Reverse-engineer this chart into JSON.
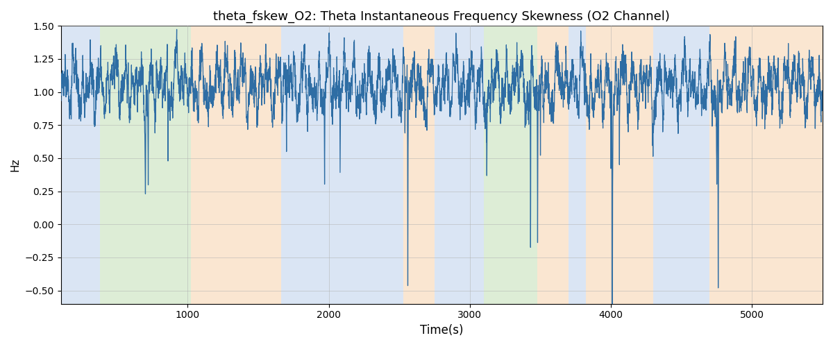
{
  "title": "theta_fskew_O2: Theta Instantaneous Frequency Skewness (O2 Channel)",
  "xlabel": "Time(s)",
  "ylabel": "Hz",
  "xlim": [
    100,
    5500
  ],
  "ylim": [
    -0.6,
    1.5
  ],
  "line_color": "#2e6da4",
  "line_width": 0.9,
  "background_regions": [
    {
      "xmin": 100,
      "xmax": 380,
      "color": "#aec6e8",
      "alpha": 0.45
    },
    {
      "xmin": 380,
      "xmax": 1020,
      "color": "#b5d9a5",
      "alpha": 0.45
    },
    {
      "xmin": 1020,
      "xmax": 1660,
      "color": "#f5c99a",
      "alpha": 0.45
    },
    {
      "xmin": 1660,
      "xmax": 1860,
      "color": "#aec6e8",
      "alpha": 0.45
    },
    {
      "xmin": 1860,
      "xmax": 2530,
      "color": "#aec6e8",
      "alpha": 0.45
    },
    {
      "xmin": 2530,
      "xmax": 2750,
      "color": "#f5c99a",
      "alpha": 0.45
    },
    {
      "xmin": 2750,
      "xmax": 3050,
      "color": "#aec6e8",
      "alpha": 0.45
    },
    {
      "xmin": 3050,
      "xmax": 3100,
      "color": "#aec6e8",
      "alpha": 0.45
    },
    {
      "xmin": 3100,
      "xmax": 3480,
      "color": "#b5d9a5",
      "alpha": 0.45
    },
    {
      "xmin": 3480,
      "xmax": 3700,
      "color": "#f5c99a",
      "alpha": 0.45
    },
    {
      "xmin": 3700,
      "xmax": 3820,
      "color": "#aec6e8",
      "alpha": 0.45
    },
    {
      "xmin": 3820,
      "xmax": 4300,
      "color": "#f5c99a",
      "alpha": 0.45
    },
    {
      "xmin": 4300,
      "xmax": 4700,
      "color": "#aec6e8",
      "alpha": 0.45
    },
    {
      "xmin": 4700,
      "xmax": 5500,
      "color": "#f5c99a",
      "alpha": 0.45
    }
  ],
  "seed": 42,
  "n_points": 5500,
  "base_value": 1.05,
  "figsize": [
    12,
    5
  ],
  "dpi": 100,
  "grid_color": "#b0b0b0",
  "grid_alpha": 0.7,
  "title_fontsize": 13
}
